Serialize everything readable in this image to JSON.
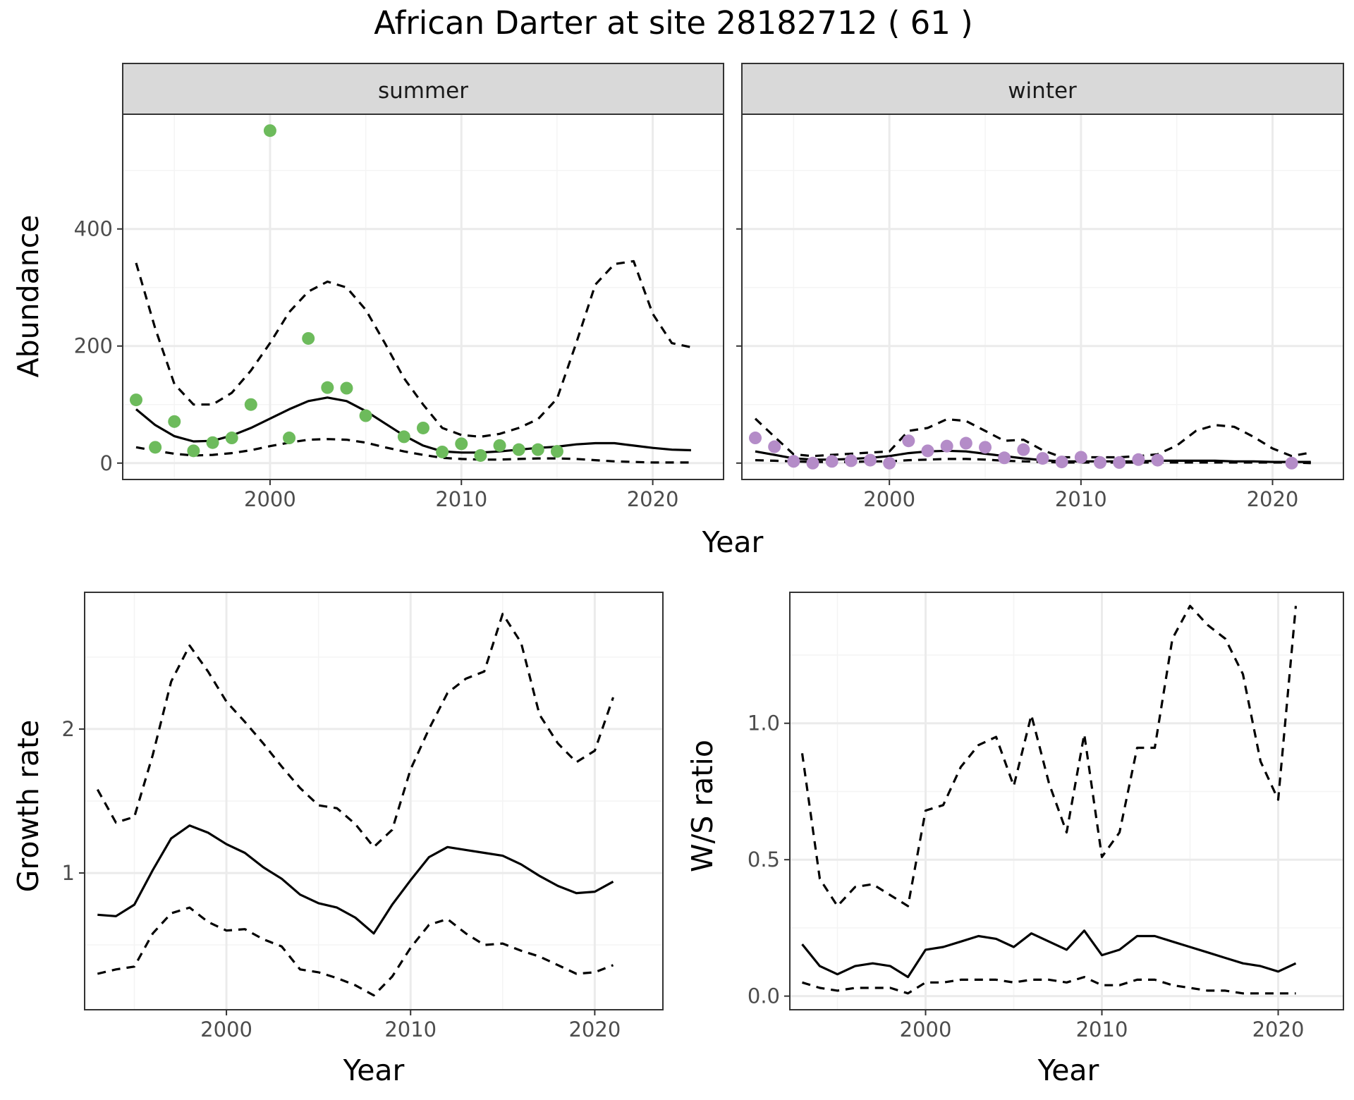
{
  "title": "African Darter at site 28182712 ( 61 )",
  "colors": {
    "summer_points": "#6dbb5c",
    "winter_points": "#b48cc8",
    "grid_major": "#ebebeb",
    "grid_minor": "#f4f4f4",
    "strip_fill": "#d9d9d9",
    "panel_border": "#333333",
    "lines": "#000000"
  },
  "chart_data": [
    {
      "type": "line",
      "facets": [
        "summer",
        "winter"
      ],
      "xlabel": "Year",
      "ylabel": "Abundance",
      "xlim": [
        1992.3,
        2023.7
      ],
      "ylim": [
        -28,
        596
      ],
      "x_ticks": [
        2000,
        2010,
        2020
      ],
      "y_ticks": [
        0,
        200,
        400
      ],
      "grid": true,
      "series": [
        {
          "facet": "summer",
          "kind": "points",
          "name": "",
          "x": [
            1993,
            1994,
            1995,
            1996,
            1997,
            1998,
            1999,
            2000,
            2001,
            2002,
            2003,
            2004,
            2005,
            2007,
            2008,
            2009,
            2010,
            2011,
            2012,
            2013,
            2014,
            2015
          ],
          "y": [
            108,
            27,
            71,
            21,
            35,
            43,
            100,
            568,
            43,
            213,
            129,
            128,
            81,
            45,
            60,
            19,
            33,
            13,
            30,
            23,
            23,
            20
          ]
        },
        {
          "facet": "summer",
          "kind": "line",
          "style": "solid",
          "name": "",
          "x": [
            1993,
            1994,
            1995,
            1996,
            1997,
            1998,
            1999,
            2000,
            2001,
            2002,
            2003,
            2004,
            2005,
            2006,
            2007,
            2008,
            2009,
            2010,
            2011,
            2012,
            2013,
            2014,
            2015,
            2016,
            2017,
            2018,
            2019,
            2020,
            2021,
            2022
          ],
          "y": [
            92,
            65,
            46,
            37,
            38,
            47,
            60,
            76,
            92,
            106,
            112,
            106,
            89,
            68,
            47,
            30,
            20,
            18,
            18,
            20,
            23,
            26,
            28,
            32,
            34,
            34,
            30,
            26,
            23,
            22
          ]
        },
        {
          "facet": "summer",
          "kind": "line",
          "style": "dashed",
          "name": "",
          "x": [
            1993,
            1994,
            1995,
            1996,
            1997,
            1998,
            1999,
            2000,
            2001,
            2002,
            2003,
            2004,
            2005,
            2006,
            2007,
            2008,
            2009,
            2010,
            2011,
            2012,
            2013,
            2014,
            2015,
            2016,
            2017,
            2018,
            2019,
            2020,
            2021,
            2022
          ],
          "y": [
            342,
            230,
            135,
            100,
            100,
            120,
            158,
            205,
            258,
            293,
            310,
            300,
            262,
            205,
            145,
            100,
            60,
            48,
            45,
            50,
            60,
            75,
            110,
            205,
            305,
            340,
            345,
            255,
            205,
            198
          ]
        },
        {
          "facet": "summer",
          "kind": "line",
          "style": "dashed",
          "name": "",
          "x": [
            1993,
            1994,
            1995,
            1996,
            1997,
            1998,
            1999,
            2000,
            2001,
            2002,
            2003,
            2004,
            2005,
            2006,
            2007,
            2008,
            2009,
            2010,
            2011,
            2012,
            2013,
            2014,
            2015,
            2016,
            2017,
            2018,
            2019,
            2020,
            2021,
            2022
          ],
          "y": [
            27,
            21,
            16,
            13,
            14,
            17,
            22,
            29,
            35,
            40,
            41,
            40,
            35,
            27,
            20,
            14,
            9,
            7,
            6,
            6,
            7,
            8,
            8,
            7,
            5,
            3,
            2,
            1,
            1,
            1
          ]
        },
        {
          "facet": "winter",
          "kind": "points",
          "name": "",
          "x": [
            1993,
            1994,
            1995,
            1996,
            1997,
            1998,
            1999,
            2000,
            2001,
            2002,
            2003,
            2004,
            2005,
            2006,
            2007,
            2008,
            2009,
            2010,
            2011,
            2012,
            2013,
            2014,
            2021
          ],
          "y": [
            43,
            28,
            3,
            0,
            3,
            4,
            5,
            0,
            38,
            21,
            29,
            34,
            27,
            9,
            23,
            8,
            2,
            10,
            1,
            1,
            6,
            5,
            0
          ]
        },
        {
          "facet": "winter",
          "kind": "line",
          "style": "solid",
          "name": "",
          "x": [
            1993,
            1994,
            1995,
            1996,
            1997,
            1998,
            1999,
            2000,
            2001,
            2002,
            2003,
            2004,
            2005,
            2006,
            2007,
            2008,
            2009,
            2010,
            2011,
            2012,
            2013,
            2014,
            2015,
            2016,
            2017,
            2018,
            2019,
            2020,
            2021,
            2022
          ],
          "y": [
            20,
            14,
            8,
            6,
            6,
            7,
            9,
            12,
            17,
            20,
            21,
            20,
            16,
            12,
            8,
            5,
            3,
            3,
            3,
            3,
            3,
            4,
            4,
            4,
            4,
            3,
            3,
            2,
            2,
            2
          ]
        },
        {
          "facet": "winter",
          "kind": "line",
          "style": "dashed",
          "name": "",
          "x": [
            1993,
            1994,
            1995,
            1996,
            1997,
            1998,
            1999,
            2000,
            2001,
            2002,
            2003,
            2004,
            2005,
            2006,
            2007,
            2008,
            2009,
            2010,
            2011,
            2012,
            2013,
            2014,
            2015,
            2016,
            2017,
            2018,
            2019,
            2020,
            2021,
            2022
          ],
          "y": [
            76,
            45,
            15,
            12,
            14,
            16,
            18,
            20,
            55,
            60,
            75,
            72,
            55,
            38,
            40,
            22,
            10,
            10,
            10,
            10,
            12,
            15,
            30,
            55,
            65,
            62,
            45,
            25,
            12,
            18
          ]
        },
        {
          "facet": "winter",
          "kind": "line",
          "style": "dashed",
          "name": "",
          "x": [
            1993,
            1994,
            1995,
            1996,
            1997,
            1998,
            1999,
            2000,
            2001,
            2002,
            2003,
            2004,
            2005,
            2006,
            2007,
            2008,
            2009,
            2010,
            2011,
            2012,
            2013,
            2014,
            2015,
            2016,
            2017,
            2018,
            2019,
            2020,
            2021,
            2022
          ],
          "y": [
            5,
            4,
            3,
            2,
            2,
            2,
            3,
            3,
            5,
            6,
            7,
            7,
            6,
            4,
            3,
            2,
            1,
            1,
            1,
            1,
            1,
            1,
            1,
            1,
            1,
            1,
            1,
            1,
            1,
            0
          ]
        }
      ]
    },
    {
      "type": "line",
      "xlabel": "Year",
      "ylabel": "Growth rate",
      "xlim": [
        1992.3,
        2023.7
      ],
      "ylim": [
        0.05,
        2.95
      ],
      "x_ticks": [
        2000,
        2010,
        2020
      ],
      "y_ticks": [
        1,
        2
      ],
      "grid": true,
      "series": [
        {
          "kind": "line",
          "style": "solid",
          "name": "",
          "x": [
            1993,
            1994,
            1995,
            1996,
            1997,
            1998,
            1999,
            2000,
            2001,
            2002,
            2003,
            2004,
            2005,
            2006,
            2007,
            2008,
            2009,
            2010,
            2011,
            2012,
            2013,
            2014,
            2015,
            2016,
            2017,
            2018,
            2019,
            2020,
            2021
          ],
          "y": [
            0.71,
            0.7,
            0.78,
            1.02,
            1.24,
            1.33,
            1.28,
            1.2,
            1.14,
            1.04,
            0.96,
            0.85,
            0.79,
            0.76,
            0.69,
            0.58,
            0.78,
            0.95,
            1.11,
            1.18,
            1.16,
            1.14,
            1.12,
            1.06,
            0.98,
            0.91,
            0.86,
            0.87,
            0.94
          ]
        },
        {
          "kind": "line",
          "style": "dashed",
          "name": "",
          "x": [
            1993,
            1994,
            1995,
            1996,
            1997,
            1998,
            1999,
            2000,
            2001,
            2002,
            2003,
            2004,
            2005,
            2006,
            2007,
            2008,
            2009,
            2010,
            2011,
            2012,
            2013,
            2014,
            2015,
            2016,
            2017,
            2018,
            2019,
            2020,
            2021
          ],
          "y": [
            1.58,
            1.35,
            1.39,
            1.82,
            2.33,
            2.58,
            2.4,
            2.19,
            2.05,
            1.9,
            1.74,
            1.59,
            1.47,
            1.45,
            1.34,
            1.18,
            1.3,
            1.72,
            2.0,
            2.25,
            2.35,
            2.4,
            2.8,
            2.6,
            2.1,
            1.9,
            1.77,
            1.85,
            2.22
          ]
        },
        {
          "kind": "line",
          "style": "dashed",
          "name": "",
          "x": [
            1993,
            1994,
            1995,
            1996,
            1997,
            1998,
            1999,
            2000,
            2001,
            2002,
            2003,
            2004,
            2005,
            2006,
            2007,
            2008,
            2009,
            2010,
            2011,
            2012,
            2013,
            2014,
            2015,
            2016,
            2017,
            2018,
            2019,
            2020,
            2021
          ],
          "y": [
            0.3,
            0.33,
            0.35,
            0.58,
            0.72,
            0.76,
            0.66,
            0.6,
            0.61,
            0.54,
            0.49,
            0.33,
            0.31,
            0.27,
            0.22,
            0.15,
            0.28,
            0.48,
            0.64,
            0.68,
            0.58,
            0.5,
            0.51,
            0.46,
            0.42,
            0.36,
            0.3,
            0.31,
            0.36
          ]
        }
      ]
    },
    {
      "type": "line",
      "xlabel": "Year",
      "ylabel": "W/S ratio",
      "xlim": [
        1992.3,
        2023.7
      ],
      "ylim": [
        -0.05,
        1.48
      ],
      "x_ticks": [
        2000,
        2010,
        2020
      ],
      "y_ticks": [
        0.0,
        0.5,
        1.0
      ],
      "y_tick_labels": [
        "0.0",
        "0.5",
        "1.0"
      ],
      "grid": true,
      "series": [
        {
          "kind": "line",
          "style": "solid",
          "name": "",
          "x": [
            1993,
            1994,
            1995,
            1996,
            1997,
            1998,
            1999,
            2000,
            2001,
            2002,
            2003,
            2004,
            2005,
            2006,
            2007,
            2008,
            2009,
            2010,
            2011,
            2012,
            2013,
            2014,
            2015,
            2016,
            2017,
            2018,
            2019,
            2020,
            2021
          ],
          "y": [
            0.19,
            0.11,
            0.08,
            0.11,
            0.12,
            0.11,
            0.07,
            0.17,
            0.18,
            0.2,
            0.22,
            0.21,
            0.18,
            0.23,
            0.2,
            0.17,
            0.24,
            0.15,
            0.17,
            0.22,
            0.22,
            0.2,
            0.18,
            0.16,
            0.14,
            0.12,
            0.11,
            0.09,
            0.12
          ]
        },
        {
          "kind": "line",
          "style": "dashed",
          "name": "",
          "x": [
            1993,
            1994,
            1995,
            1996,
            1997,
            1998,
            1999,
            2000,
            2001,
            2002,
            2003,
            2004,
            2005,
            2006,
            2007,
            2008,
            2009,
            2010,
            2011,
            2012,
            2013,
            2014,
            2015,
            2016,
            2017,
            2018,
            2019,
            2020,
            2021
          ],
          "y": [
            0.89,
            0.43,
            0.33,
            0.4,
            0.41,
            0.37,
            0.33,
            0.68,
            0.7,
            0.84,
            0.92,
            0.95,
            0.77,
            1.03,
            0.78,
            0.6,
            0.96,
            0.51,
            0.6,
            0.91,
            0.91,
            1.31,
            1.43,
            1.36,
            1.31,
            1.18,
            0.86,
            0.72,
            1.43
          ]
        },
        {
          "kind": "line",
          "style": "dashed",
          "name": "",
          "x": [
            1993,
            1994,
            1995,
            1996,
            1997,
            1998,
            1999,
            2000,
            2001,
            2002,
            2003,
            2004,
            2005,
            2006,
            2007,
            2008,
            2009,
            2010,
            2011,
            2012,
            2013,
            2014,
            2015,
            2016,
            2017,
            2018,
            2019,
            2020,
            2021
          ],
          "y": [
            0.05,
            0.03,
            0.02,
            0.03,
            0.03,
            0.03,
            0.01,
            0.05,
            0.05,
            0.06,
            0.06,
            0.06,
            0.05,
            0.06,
            0.06,
            0.05,
            0.07,
            0.04,
            0.04,
            0.06,
            0.06,
            0.04,
            0.03,
            0.02,
            0.02,
            0.01,
            0.01,
            0.01,
            0.01
          ]
        }
      ]
    }
  ]
}
